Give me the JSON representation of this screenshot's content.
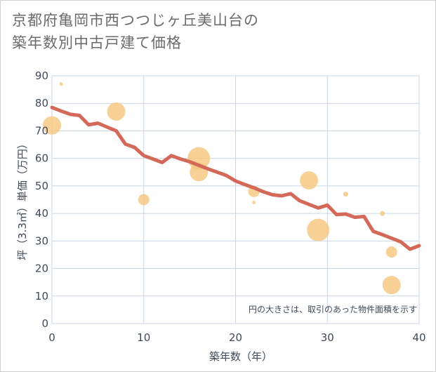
{
  "title_line1": "京都府亀岡市西つつじヶ丘美山台の",
  "title_line2": "築年数別中古戸建て価格",
  "colors": {
    "trend": "#d4695a",
    "bubble": "#f5c77e",
    "grid": "#c9d6e3",
    "axis_text": "#3f4a5a"
  },
  "chart_data": {
    "type": "scatter",
    "title": "京都府亀岡市西つつじヶ丘美山台の築年数別中古戸建て価格",
    "xlabel": "築年数（年）",
    "ylabel": "坪（3.3㎡）単価（万円）",
    "xlim": [
      0,
      40
    ],
    "ylim": [
      0,
      90
    ],
    "xticks": [
      0,
      10,
      20,
      30,
      40
    ],
    "yticks": [
      0,
      10,
      20,
      30,
      40,
      50,
      60,
      70,
      80,
      90
    ],
    "grid": true,
    "note": "円の大きさは、取引のあった物件面積を示す",
    "bubbles": [
      {
        "x": 0,
        "y": 72,
        "size": "large"
      },
      {
        "x": 1,
        "y": 87,
        "size": "tiny"
      },
      {
        "x": 7,
        "y": 77,
        "size": "large"
      },
      {
        "x": 10,
        "y": 45,
        "size": "medium"
      },
      {
        "x": 16,
        "y": 60,
        "size": "xlarge"
      },
      {
        "x": 16,
        "y": 55,
        "size": "large"
      },
      {
        "x": 22,
        "y": 48,
        "size": "medium"
      },
      {
        "x": 22,
        "y": 44,
        "size": "tiny"
      },
      {
        "x": 28,
        "y": 52,
        "size": "large"
      },
      {
        "x": 29,
        "y": 34,
        "size": "xlarge"
      },
      {
        "x": 32,
        "y": 47,
        "size": "small"
      },
      {
        "x": 36,
        "y": 40,
        "size": "small"
      },
      {
        "x": 37,
        "y": 26,
        "size": "medium"
      },
      {
        "x": 37,
        "y": 14,
        "size": "large"
      }
    ],
    "trend": {
      "x": [
        0,
        1,
        2,
        3,
        4,
        5,
        6,
        7,
        8,
        9,
        10,
        11,
        12,
        13,
        14,
        15,
        16,
        17,
        18,
        19,
        20,
        21,
        22,
        23,
        24,
        25,
        26,
        27,
        28,
        29,
        30,
        31,
        32,
        33,
        34,
        35,
        36,
        37,
        38,
        39,
        40
      ],
      "y": [
        78.5,
        77.2,
        76,
        75.6,
        72.2,
        72.8,
        71.4,
        70,
        65.2,
        64,
        61,
        59.8,
        58.5,
        61,
        59.8,
        58.8,
        57.5,
        56.2,
        55,
        53.8,
        51.8,
        50.5,
        49.3,
        47.9,
        46.8,
        46.4,
        47.2,
        44.6,
        43.3,
        42,
        43,
        39.6,
        39.8,
        38.6,
        38.9,
        33.5,
        32.3,
        31,
        29.7,
        27,
        28.3
      ]
    }
  }
}
